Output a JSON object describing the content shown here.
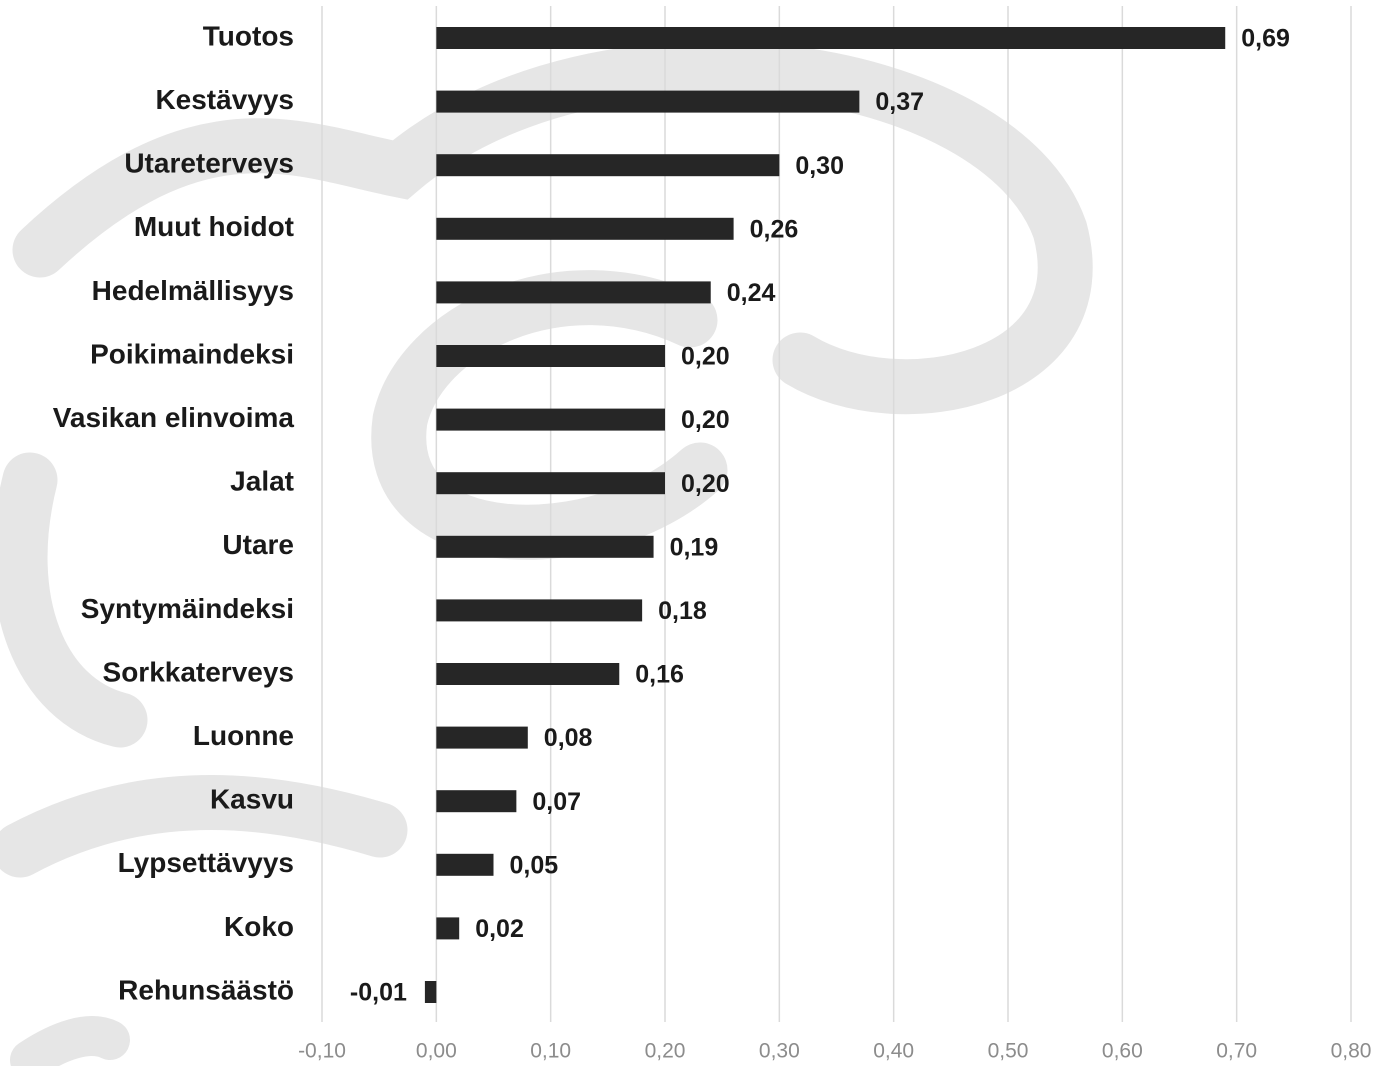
{
  "chart_data": {
    "type": "hbar",
    "categories": [
      "Tuotos",
      "Kestävyys",
      "Utareterveys",
      "Muut hoidot",
      "Hedelmällisyys",
      "Poikimaindeksi",
      "Vasikan elinvoima",
      "Jalat",
      "Utare",
      "Syntymäindeksi",
      "Sorkkaterveys",
      "Luonne",
      "Kasvu",
      "Lypsettävyys",
      "Koko",
      "Rehunsäästö"
    ],
    "values": [
      0.69,
      0.37,
      0.3,
      0.26,
      0.24,
      0.2,
      0.2,
      0.2,
      0.19,
      0.18,
      0.16,
      0.08,
      0.07,
      0.05,
      0.02,
      -0.01
    ],
    "value_labels": [
      "0,69",
      "0,37",
      "0,30",
      "0,26",
      "0,24",
      "0,20",
      "0,20",
      "0,20",
      "0,19",
      "0,18",
      "0,16",
      "0,08",
      "0,07",
      "0,05",
      "0,02",
      "-0,01"
    ],
    "color": "#262626",
    "xlim": [
      -0.1,
      0.8
    ],
    "xticks": [
      {
        "value": -0.1,
        "label": "-0,10"
      },
      {
        "value": 0,
        "label": "0,00"
      },
      {
        "value": 0.1,
        "label": "0,10"
      },
      {
        "value": 0.2,
        "label": "0,20"
      },
      {
        "value": 0.3,
        "label": "0,30"
      },
      {
        "value": 0.4,
        "label": "0,40"
      },
      {
        "value": 0.5,
        "label": "0,50"
      },
      {
        "value": 0.6,
        "label": "0,60"
      },
      {
        "value": 0.7,
        "label": "0,70"
      },
      {
        "value": 0.8,
        "label": "0,80"
      }
    ],
    "grid": true
  }
}
